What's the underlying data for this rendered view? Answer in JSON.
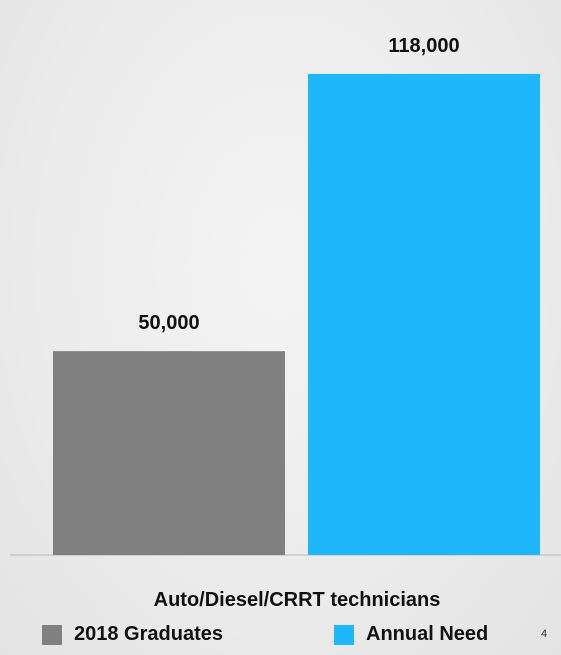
{
  "chart_data": {
    "type": "bar",
    "categories": [
      "Auto/Diesel/CRRT technicians"
    ],
    "series": [
      {
        "name": "2018 Graduates",
        "values": [
          50000
        ],
        "color": "#808080",
        "label": "50,000"
      },
      {
        "name": "Annual Need",
        "values": [
          118000
        ],
        "color": "#1eb8fa",
        "label": "118,000"
      }
    ],
    "ylim": [
      0,
      130000
    ],
    "grid": false,
    "legend_position": "bottom"
  },
  "footnote": "4"
}
